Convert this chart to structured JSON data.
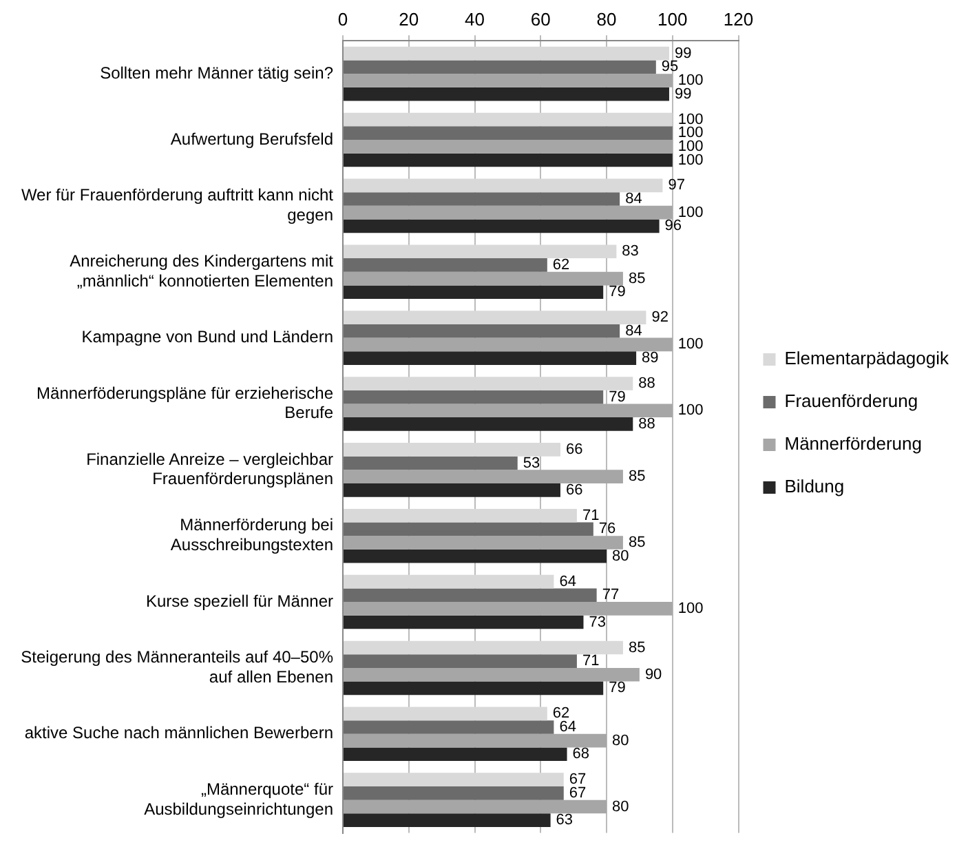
{
  "chart_data": {
    "type": "bar",
    "orientation": "horizontal",
    "categories": [
      "Sollten mehr Männer tätig sein?",
      "Aufwertung Berufsfeld",
      "Wer für Frauenförderung auftritt kann nicht gegen",
      "Anreicherung des Kindergartens mit „männlich“ konnotierten Elementen",
      "Kampagne von Bund und Ländern",
      "Männerföderungspläne für erzieherische Berufe",
      "Finanzielle Anreize – vergleichbar Frauenförderungsplänen",
      "Männerförderung bei Ausschreibungstexten",
      "Kurse speziell für Männer",
      "Steigerung des Männeranteils auf 40–50% auf allen Ebenen",
      "aktive Suche nach männlichen Bewerbern",
      "„Männerquote“ für Ausbildungseinrichtungen"
    ],
    "series": [
      {
        "name": "Elementarpädagogik",
        "color": "#d9d9d9",
        "values": [
          99,
          100,
          97,
          83,
          92,
          88,
          66,
          71,
          64,
          85,
          62,
          67
        ]
      },
      {
        "name": "Frauenförderung",
        "color": "#6b6b6b",
        "values": [
          95,
          100,
          84,
          62,
          84,
          79,
          53,
          76,
          77,
          71,
          64,
          67
        ]
      },
      {
        "name": "Männerförderung",
        "color": "#a6a6a6",
        "values": [
          100,
          100,
          100,
          85,
          100,
          100,
          85,
          85,
          100,
          90,
          80,
          80
        ]
      },
      {
        "name": "Bildung",
        "color": "#262626",
        "values": [
          99,
          100,
          96,
          79,
          89,
          88,
          66,
          80,
          73,
          79,
          68,
          63
        ]
      }
    ],
    "xlim": [
      0,
      120
    ],
    "xticks": [
      0,
      20,
      40,
      60,
      80,
      100,
      120
    ],
    "grid": "x",
    "legend": "right",
    "data_labels": true
  }
}
